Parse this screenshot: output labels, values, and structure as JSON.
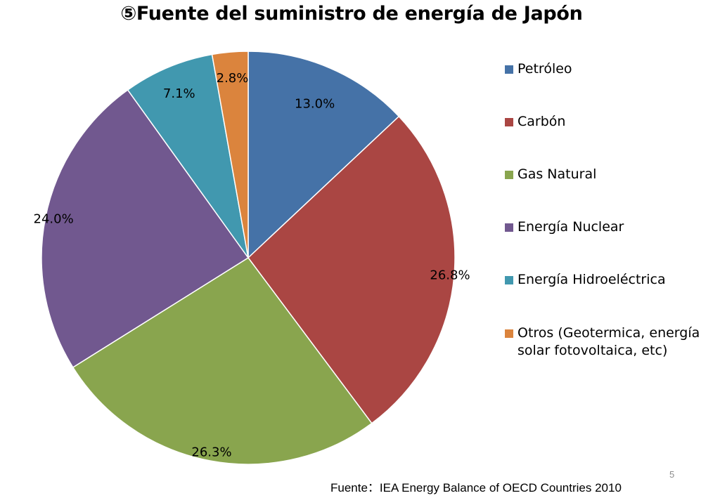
{
  "title": "⑤Fuente del suministro de energía de Japón",
  "chart_data": {
    "type": "pie",
    "title": "⑤Fuente del suministro de energía de Japón",
    "categories": [
      "Petróleo",
      "Carbón",
      "Gas Natural",
      "Energía Nuclear",
      "Energía Hidroeléctrica",
      "Otros (Geotermica, energía solar fotovoltaica, etc)"
    ],
    "values": [
      13.0,
      26.8,
      26.3,
      24.0,
      7.1,
      2.8
    ],
    "labels": [
      "13.0%",
      "26.8%",
      "26.3%",
      "24.0%",
      "7.1%",
      "2.8%"
    ],
    "colors": [
      "#4572a7",
      "#aa4643",
      "#89a54e",
      "#71588f",
      "#4198af",
      "#db843d"
    ],
    "legend_position": "right",
    "start": "12 o'clock, clockwise"
  },
  "legend": {
    "items": [
      {
        "label": "Petróleo",
        "color": "#4572a7"
      },
      {
        "label": "Carbón",
        "color": "#aa4643"
      },
      {
        "label": "Gas Natural",
        "color": "#89a54e"
      },
      {
        "label": "Energía Nuclear",
        "color": "#71588f"
      },
      {
        "label": "Energía Hidroeléctrica",
        "color": "#4198af"
      },
      {
        "label": "Otros (Geotermica, energía solar fotovoltaica, etc)",
        "color": "#db843d"
      }
    ]
  },
  "page_number": "5",
  "source": "Fuente：IEA Energy Balance of OECD Countries 2010"
}
